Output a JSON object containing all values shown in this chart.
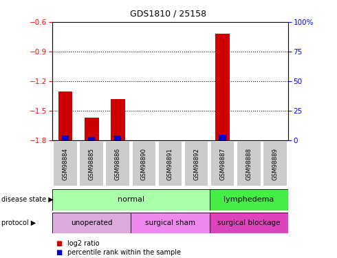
{
  "title": "GDS1810 / 25158",
  "samples": [
    "GSM98884",
    "GSM98885",
    "GSM98886",
    "GSM98890",
    "GSM98891",
    "GSM98892",
    "GSM98887",
    "GSM98888",
    "GSM98889"
  ],
  "log2_values": [
    -1.3,
    -1.57,
    -1.38,
    -1.8,
    -1.8,
    -1.8,
    -0.72,
    -1.8,
    -1.8
  ],
  "percentile_values": [
    4,
    3,
    4,
    0,
    0,
    0,
    5,
    0,
    0
  ],
  "baseline": -1.8,
  "ylim_left": [
    -1.8,
    -0.6
  ],
  "yticks_left": [
    -1.8,
    -1.5,
    -1.2,
    -0.9,
    -0.6
  ],
  "ylim_right": [
    0,
    100
  ],
  "yticks_right": [
    0,
    25,
    50,
    75,
    100
  ],
  "bar_width": 0.55,
  "red_color": "#cc0000",
  "blue_color": "#0000cc",
  "normal_color": "#aaffaa",
  "lymphedema_color": "#44ee44",
  "unoperated_color": "#ddaadd",
  "surgical_sham_color": "#ee88ee",
  "surgical_blockage_color": "#dd44bb",
  "tick_bg_color": "#cccccc",
  "legend_red": "log2 ratio",
  "legend_blue": "percentile rank within the sample",
  "label_disease": "disease state",
  "label_protocol": "protocol"
}
